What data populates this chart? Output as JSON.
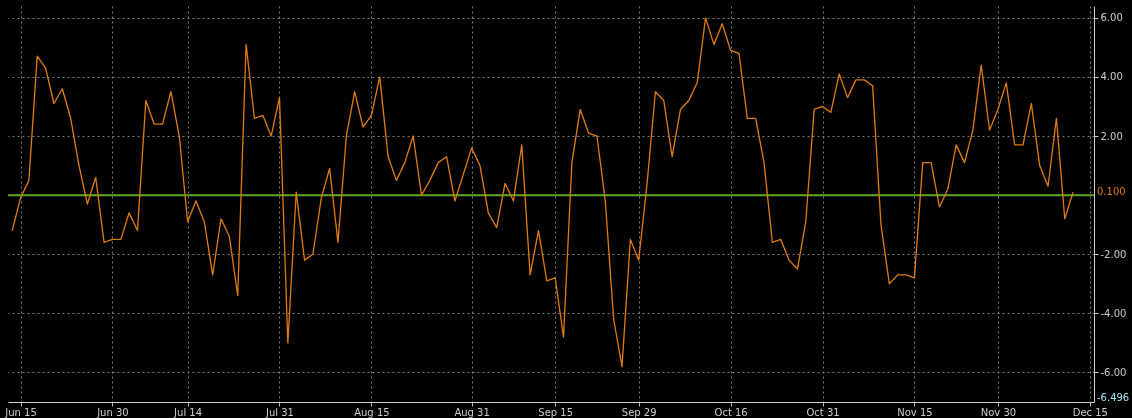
{
  "chart_data": {
    "type": "line",
    "categories": [
      null,
      "Jun 15",
      null,
      null,
      null,
      null,
      null,
      null,
      null,
      null,
      null,
      null,
      "Jun 30",
      null,
      null,
      null,
      null,
      null,
      null,
      null,
      null,
      "Jul 14",
      null,
      null,
      null,
      null,
      null,
      null,
      null,
      null,
      null,
      null,
      "Jul 31",
      null,
      null,
      null,
      null,
      null,
      null,
      null,
      null,
      null,
      null,
      "Aug 15",
      null,
      null,
      null,
      null,
      null,
      null,
      null,
      null,
      null,
      null,
      null,
      "Aug 31",
      null,
      null,
      null,
      null,
      null,
      null,
      null,
      null,
      null,
      "Sep 15",
      null,
      null,
      null,
      null,
      null,
      null,
      null,
      null,
      null,
      "Sep 29",
      null,
      null,
      null,
      null,
      null,
      null,
      null,
      null,
      null,
      null,
      "Oct 16",
      null,
      null,
      null,
      null,
      null,
      null,
      null,
      null,
      null,
      null,
      "Oct 31",
      null,
      null,
      null,
      null,
      null,
      null,
      null,
      null,
      null,
      null,
      "Nov 15",
      null,
      null,
      null,
      null,
      null,
      null,
      null,
      null,
      null,
      "Nov 30",
      null,
      null,
      null,
      null,
      null,
      null,
      null,
      null,
      null,
      null,
      "Dec 15"
    ],
    "series": [
      {
        "color": "#e07b12",
        "values": [
          -1.2,
          -0.1,
          0.5,
          4.7,
          4.3,
          3.1,
          3.6,
          2.6,
          1.0,
          -0.3,
          0.6,
          -1.6,
          -1.5,
          -1.5,
          -0.6,
          -1.2,
          3.2,
          2.4,
          2.4,
          3.5,
          2.0,
          -0.9,
          -0.2,
          -0.9,
          -2.7,
          -0.8,
          -1.4,
          -3.4,
          5.1,
          2.6,
          2.7,
          2.0,
          3.3,
          -5.0,
          0.1,
          -2.2,
          -2.0,
          -0.1,
          0.9,
          -1.6,
          2.0,
          3.5,
          2.3,
          2.7,
          4.0,
          1.3,
          0.5,
          1.1,
          2.0,
          0.0,
          0.5,
          1.1,
          1.3,
          -0.2,
          0.7,
          1.6,
          1.0,
          -0.6,
          -1.1,
          0.4,
          -0.2,
          1.7,
          -2.7,
          -1.2,
          -2.9,
          -2.8,
          -4.8,
          1.1,
          2.9,
          2.1,
          2.0,
          -0.2,
          -4.2,
          -5.8,
          -1.5,
          -2.2,
          0.4,
          3.5,
          3.2,
          1.3,
          2.9,
          3.2,
          3.8,
          6.0,
          5.1,
          5.8,
          4.9,
          4.8,
          2.6,
          2.6,
          1.1,
          -1.6,
          -1.5,
          -2.2,
          -2.5,
          -0.9,
          2.9,
          3.0,
          2.8,
          4.1,
          3.3,
          3.9,
          3.9,
          3.7,
          -1.0,
          -3.0,
          -2.7,
          -2.7,
          -2.8,
          1.1,
          1.1,
          -0.4,
          0.2,
          1.7,
          1.1,
          2.2,
          4.4,
          2.2,
          2.9,
          3.8,
          1.7,
          1.7,
          3.1,
          1.0,
          0.3,
          2.6,
          -0.8,
          0.1,
          null,
          null
        ]
      }
    ],
    "ylim": [
      -7,
      6.4
    ],
    "yticks": [
      {
        "value": 6,
        "label": "6.00"
      },
      {
        "value": 4,
        "label": "4.00"
      },
      {
        "value": 2,
        "label": "2.00"
      },
      {
        "value": -2,
        "label": "-2.00"
      },
      {
        "value": -4,
        "label": "-4.00"
      },
      {
        "value": -6,
        "label": "-6.00"
      }
    ],
    "grid": true,
    "ref_lines": [
      {
        "axis": "y",
        "value": 0,
        "color": "#5fa81e"
      }
    ],
    "annotations": [
      "0.100",
      "-6.496"
    ]
  }
}
